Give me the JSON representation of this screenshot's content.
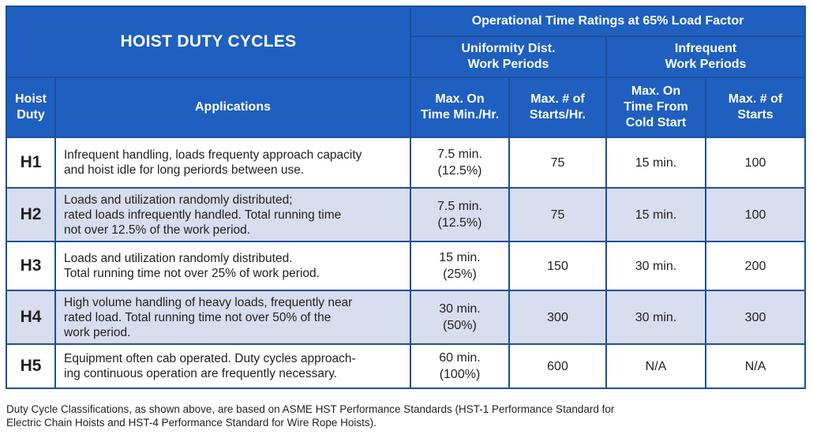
{
  "header": {
    "title": "HOIST DUTY CYCLES",
    "super_header": "Operational Time Ratings at 65% Load Factor",
    "group_uniform": [
      "Uniformity Dist.",
      "Work Periods"
    ],
    "group_infrequent": [
      "Infrequent",
      "Work Periods"
    ],
    "col_duty": [
      "Hoist",
      "Duty"
    ],
    "col_applications": "Applications",
    "col_max_on_time": [
      "Max. On",
      "Time Min./Hr."
    ],
    "col_max_starts_hr": [
      "Max. # of",
      "Starts/Hr."
    ],
    "col_max_on_cold": [
      "Max. On",
      "Time From",
      "Cold Start"
    ],
    "col_max_starts": [
      "Max. # of",
      "Starts"
    ]
  },
  "rows": [
    {
      "duty": "H1",
      "application": [
        "Infrequent handling, loads frequenty approach capacity",
        "and hoist idle for long periords between use."
      ],
      "on_time": [
        "7.5 min.",
        "(12.5%)"
      ],
      "starts_hr": "75",
      "cold_start": "15 min.",
      "starts": "100"
    },
    {
      "duty": "H2",
      "application": [
        "Loads and utilization randomly distributed;",
        "rated loads infrequently handled. Total running time",
        "not over 12.5% of the work period."
      ],
      "on_time": [
        "7.5 min.",
        "(12.5%)"
      ],
      "starts_hr": "75",
      "cold_start": "15 min.",
      "starts": "100"
    },
    {
      "duty": "H3",
      "application": [
        "Loads and utilization randomly distributed.",
        "Total running time not over 25% of work period."
      ],
      "on_time": [
        "15 min.",
        "(25%)"
      ],
      "starts_hr": "150",
      "cold_start": "30 min.",
      "starts": "200"
    },
    {
      "duty": "H4",
      "application": [
        "High volume handling of heavy loads, frequently near",
        "rated load. Total running time not over 50% of the",
        "work period."
      ],
      "on_time": [
        "30 min.",
        "(50%)"
      ],
      "starts_hr": "300",
      "cold_start": "30 min.",
      "starts": "300"
    },
    {
      "duty": "H5",
      "application": [
        "Equipment often cab operated. Duty cycles approach-",
        "ing continuous operation are frequently necessary."
      ],
      "on_time": [
        "60 min.",
        "(100%)"
      ],
      "starts_hr": "600",
      "cold_start": "N/A",
      "starts": "N/A"
    }
  ],
  "footnote": [
    "Duty Cycle Classifications, as shown above, are based on ASME HST Performance Standards (HST-1 Performance Standard for",
    "Electric Chain Hoists and HST-4 Performance Standard for Wire Rope Hoists)."
  ],
  "colors": {
    "header_bg": "#1f5fbf",
    "border": "#1d4f9a",
    "alt_row_bg": "#d8ddef"
  }
}
